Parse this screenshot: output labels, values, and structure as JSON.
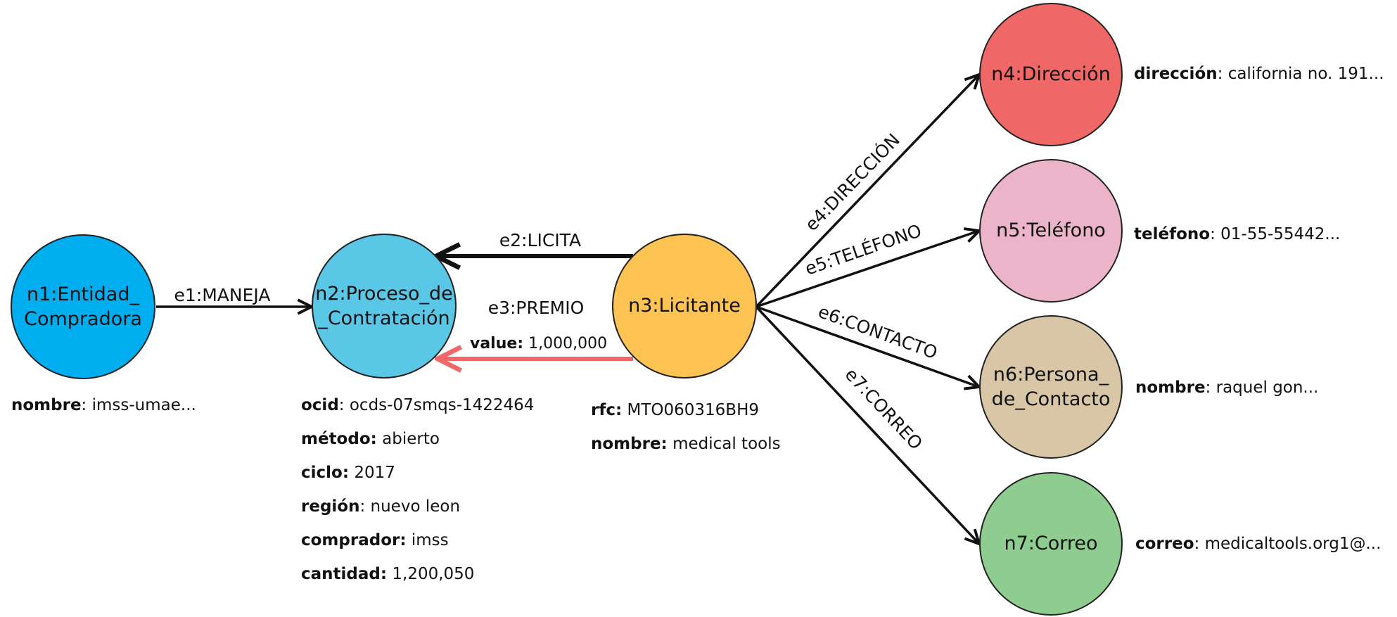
{
  "nodes": {
    "n1": {
      "line1": "n1:Entidad_",
      "line2": "Compradora",
      "color": "#00adef"
    },
    "n2": {
      "line1": "n2:Proceso_de",
      "line2": "_Contratación",
      "color": "#59c7e5"
    },
    "n3": {
      "label": "n3:Licitante",
      "color": "#fdc353"
    },
    "n4": {
      "label": "n4:Dirección",
      "color": "#f06767"
    },
    "n5": {
      "label": "n5:Teléfono",
      "color": "#ebb4c9"
    },
    "n6": {
      "line1": "n6:Persona_",
      "line2": "de_Contacto",
      "color": "#d8c6a7"
    },
    "n7": {
      "label": "n7:Correo",
      "color": "#8ecd8f"
    }
  },
  "edges": {
    "e1": {
      "label": "e1:MANEJA"
    },
    "e2": {
      "label": "e2:LICITA"
    },
    "e3": {
      "label": "e3:PREMIO",
      "value_key": "value:",
      "value": "1,000,000",
      "color": "#f06767"
    },
    "e4": {
      "label": "e4:DIRECCIÓN"
    },
    "e5": {
      "label": "e5:TELÉFONO"
    },
    "e6": {
      "label": "e6:CONTACTO"
    },
    "e7": {
      "label": "e7:CORREO"
    }
  },
  "properties": {
    "n1": [
      {
        "key": "nombre",
        "sep": ": ",
        "value": "imss-umae..."
      }
    ],
    "n2": [
      {
        "key": "ocid",
        "sep": ": ",
        "value": "ocds-07smqs-1422464"
      },
      {
        "key": "método:",
        "sep": " ",
        "value": "abierto"
      },
      {
        "key": "ciclo:",
        "sep": " ",
        "value": "2017"
      },
      {
        "key": "región",
        "sep": ": ",
        "value": "nuevo leon"
      },
      {
        "key": "comprador:",
        "sep": " ",
        "value": "imss"
      },
      {
        "key": "cantidad:",
        "sep": " ",
        "value": "1,200,050"
      }
    ],
    "n3": [
      {
        "key": "rfc:",
        "sep": " ",
        "value": "MTO060316BH9"
      },
      {
        "key": "nombre:",
        "sep": " ",
        "value": "medical tools"
      }
    ],
    "n4": {
      "key": "dirección",
      "sep": ": ",
      "value": "california no. 191..."
    },
    "n5": {
      "key": "teléfono",
      "sep": ": ",
      "value": "01-55-55442..."
    },
    "n6": {
      "key": "nombre",
      "sep": ": ",
      "value": "raquel  gon..."
    },
    "n7": {
      "key": "correo",
      "sep": ": ",
      "value": "medicaltools.org1@..."
    }
  }
}
